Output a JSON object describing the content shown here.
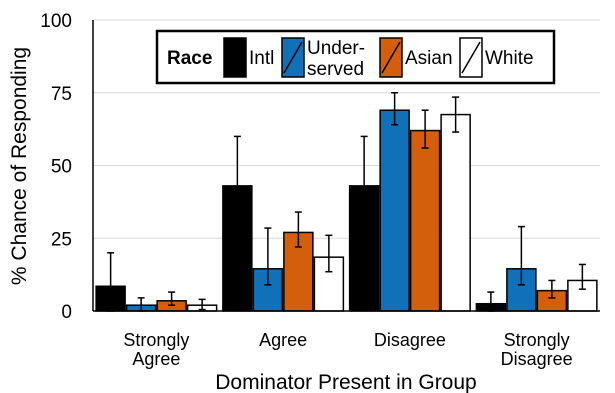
{
  "chart_data": {
    "type": "bar",
    "xlabel": "Dominator Present in Group",
    "ylabel": "% Chance of Responding",
    "ylim": [
      0,
      100
    ],
    "yticks": [
      "0",
      "25",
      "50",
      "75",
      "100"
    ],
    "grid": "horizontal",
    "legend_position": "top",
    "legend_title": "Race",
    "categories": [
      [
        "Strongly",
        "Agree"
      ],
      [
        "Agree"
      ],
      [
        "Disagree"
      ],
      [
        "Strongly",
        "Disagree"
      ]
    ],
    "series": [
      {
        "name": "Intl",
        "legend_lines": [
          "Intl"
        ],
        "color": "#000000",
        "values": [
          8.5,
          43,
          43,
          2.5
        ],
        "err_low": [
          8.5,
          9,
          9,
          2.5
        ],
        "err_high": [
          11.5,
          17,
          17,
          4
        ]
      },
      {
        "name": "Underserved",
        "legend_lines": [
          "Under-",
          "served"
        ],
        "color": "#1070b8",
        "values": [
          2,
          14.5,
          69,
          14.5
        ],
        "err_low": [
          2,
          5.5,
          5,
          5.5
        ],
        "err_high": [
          2.5,
          14,
          6,
          14.5
        ]
      },
      {
        "name": "Asian",
        "legend_lines": [
          "Asian"
        ],
        "color": "#d35f0c",
        "values": [
          3.5,
          27,
          62,
          7
        ],
        "err_low": [
          1.5,
          5,
          6,
          2.5
        ],
        "err_high": [
          3,
          7,
          7,
          3.5
        ]
      },
      {
        "name": "White",
        "legend_lines": [
          "White"
        ],
        "color": "#ffffff",
        "values": [
          2,
          18.5,
          67.5,
          10.5
        ],
        "err_low": [
          1.5,
          5,
          6,
          3
        ],
        "err_high": [
          2,
          7.5,
          6,
          5.5
        ]
      }
    ]
  }
}
